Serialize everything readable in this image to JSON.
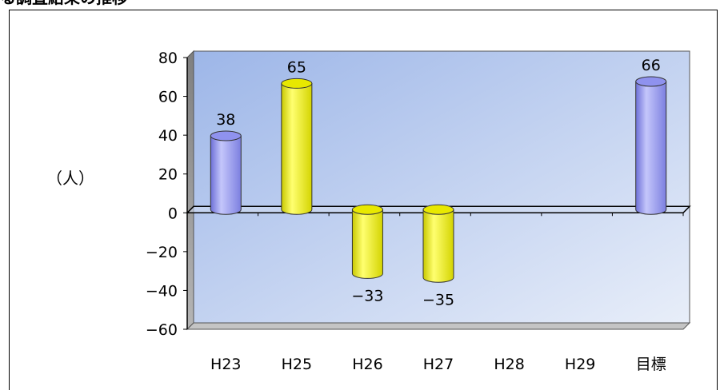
{
  "header": {
    "title_partial": "る調査結果の推移"
  },
  "chart_data": {
    "type": "bar",
    "title": "",
    "xlabel": "",
    "ylabel": "（人）",
    "categories": [
      "H23",
      "H25",
      "H26",
      "H27",
      "H28",
      "H29",
      "目標"
    ],
    "values": [
      38,
      65,
      -33,
      -35,
      null,
      null,
      66
    ],
    "data_labels": [
      "38",
      "65",
      "−33",
      "−35",
      "",
      "",
      "66"
    ],
    "ylim": [
      -60,
      80
    ],
    "yticks": [
      80,
      60,
      40,
      20,
      0,
      -20,
      -40,
      -60
    ],
    "ytick_labels": [
      "80",
      "60",
      "40",
      "20",
      "0",
      "−20",
      "−40",
      "−60"
    ],
    "grid": false,
    "style": "3d-cylinder",
    "colors": {
      "blue_bar": "#9a9cf0",
      "yellow_bar": "#f2f200",
      "plot_bg_top": "#a8bee8",
      "plot_bg_bottom": "#e6ecf8",
      "floor": "#c0c0c0"
    },
    "bar_colors": [
      "blue",
      "yellow",
      "yellow",
      "yellow",
      "yellow",
      "yellow",
      "blue"
    ]
  }
}
